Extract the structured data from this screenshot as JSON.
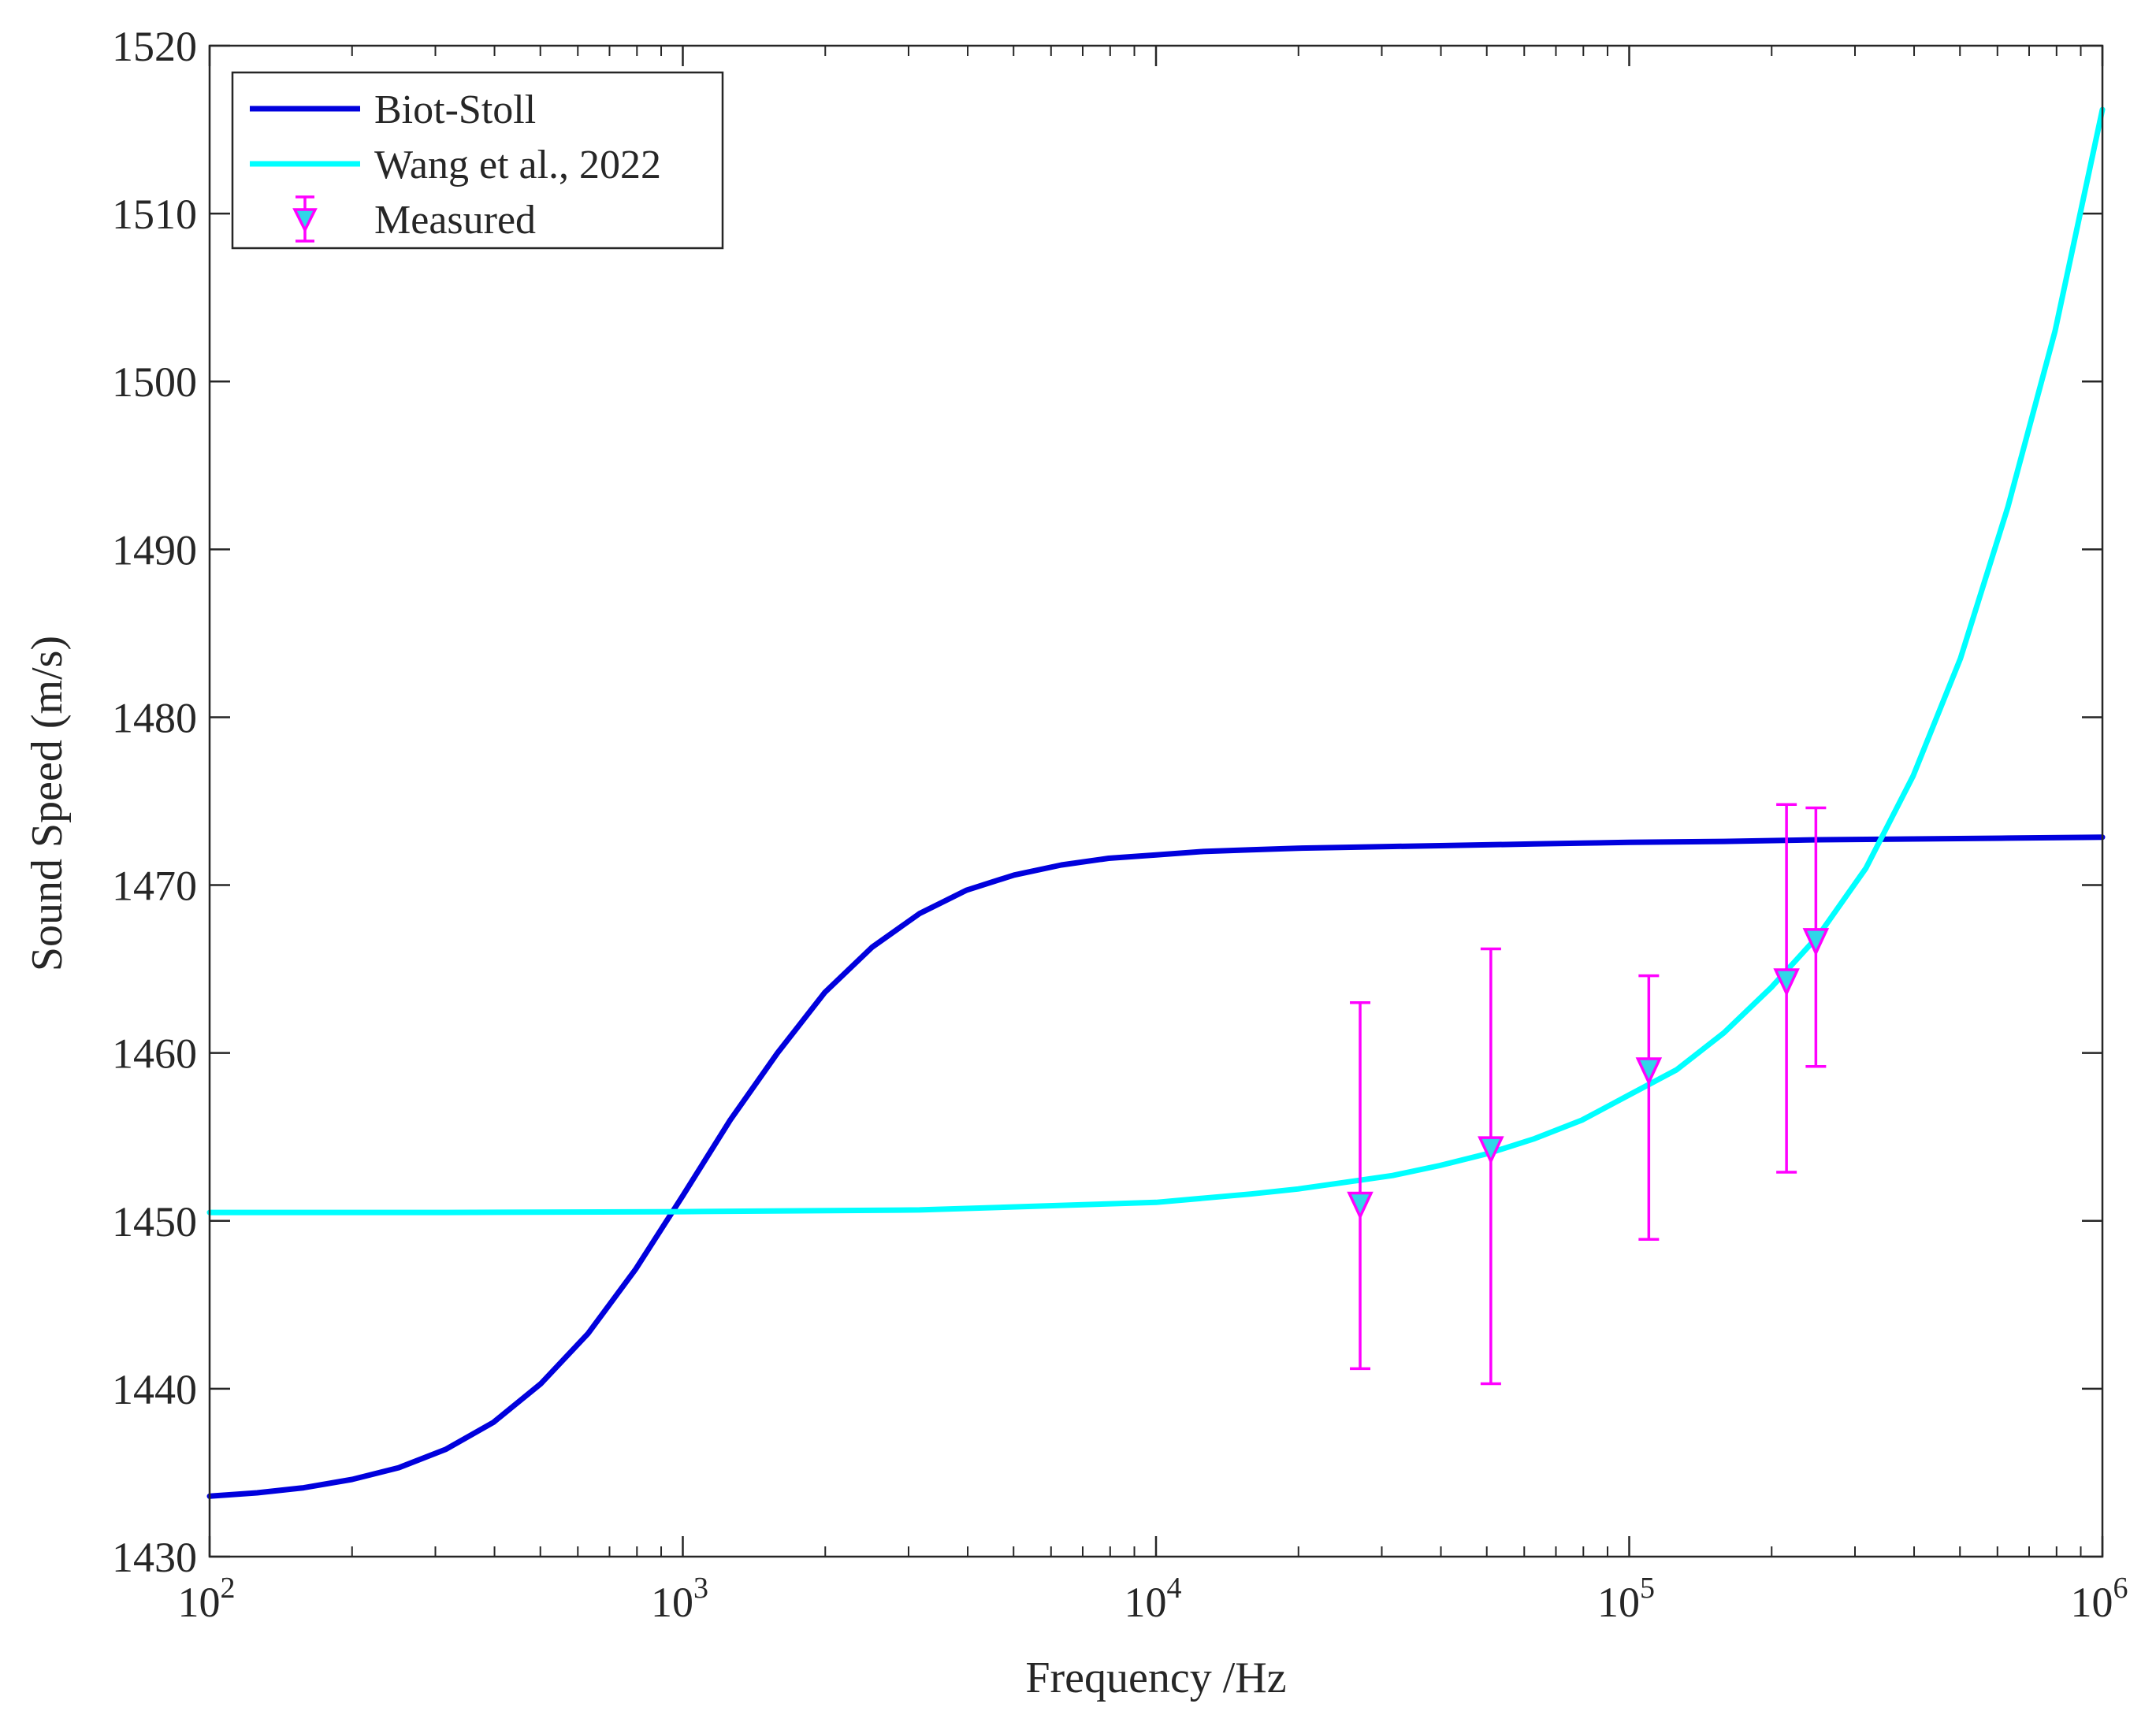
{
  "chart_data": {
    "type": "line",
    "xscale": "log",
    "xlabel": "Frequency /Hz",
    "ylabel": "Sound Speed (m/s)",
    "xlim": [
      100,
      1000000
    ],
    "ylim": [
      1430,
      1520
    ],
    "x_ticks": [
      {
        "value": 100,
        "base": "10",
        "exp": "2"
      },
      {
        "value": 1000,
        "base": "10",
        "exp": "3"
      },
      {
        "value": 10000,
        "base": "10",
        "exp": "4"
      },
      {
        "value": 100000,
        "base": "10",
        "exp": "5"
      },
      {
        "value": 1000000,
        "base": "10",
        "exp": "6"
      }
    ],
    "y_ticks": [
      1430,
      1440,
      1450,
      1460,
      1470,
      1480,
      1490,
      1500,
      1510,
      1520
    ],
    "legend_position": "top-left",
    "series": [
      {
        "name": "Biot-Stoll",
        "kind": "line",
        "color": "#0000DD",
        "x": [
          100,
          126,
          158,
          200,
          251,
          316,
          398,
          501,
          631,
          794,
          1000,
          1259,
          1585,
          1995,
          2512,
          3162,
          3981,
          5012,
          6310,
          7943,
          10000,
          12589,
          15849,
          19953,
          25119,
          31623,
          39811,
          50119,
          63096,
          79433,
          100000,
          158489,
          251189,
          398107,
          630957,
          1000000
        ],
        "y": [
          1433.6,
          1433.8,
          1434.1,
          1434.6,
          1435.3,
          1436.4,
          1438.0,
          1440.3,
          1443.3,
          1447.1,
          1451.5,
          1456.0,
          1460.0,
          1463.6,
          1466.3,
          1468.3,
          1469.7,
          1470.6,
          1471.2,
          1471.6,
          1471.8,
          1472.0,
          1472.1,
          1472.2,
          1472.25,
          1472.3,
          1472.35,
          1472.4,
          1472.45,
          1472.5,
          1472.55,
          1472.6,
          1472.7,
          1472.75,
          1472.8,
          1472.85
        ]
      },
      {
        "name": "Wang et al., 2022",
        "kind": "line",
        "color": "#00FFFF",
        "x": [
          100,
          316,
          1000,
          3162,
          10000,
          15849,
          19953,
          25119,
          31623,
          39811,
          50119,
          63096,
          79433,
          100000,
          125893,
          158489,
          199526,
          251189,
          316228,
          398107,
          501187,
          630957,
          794328,
          1000000
        ],
        "y": [
          1450.5,
          1450.5,
          1450.55,
          1450.65,
          1451.1,
          1451.6,
          1451.9,
          1452.3,
          1452.7,
          1453.3,
          1454.0,
          1454.9,
          1456.0,
          1457.5,
          1459.0,
          1461.2,
          1463.9,
          1467.0,
          1471.0,
          1476.5,
          1483.5,
          1492.5,
          1503.0,
          1516.2
        ]
      },
      {
        "name": "Measured",
        "kind": "errorbar",
        "color": "#FF00FF",
        "marker_fill": "#30D5E8",
        "x": [
          27000,
          51000,
          110000,
          215000,
          248000
        ],
        "y": [
          1451.0,
          1454.3,
          1459.0,
          1464.3,
          1466.7
        ],
        "lower": [
          1441.2,
          1440.3,
          1448.9,
          1452.9,
          1459.2
        ],
        "upper": [
          1463.0,
          1466.2,
          1464.6,
          1474.8,
          1474.6
        ]
      }
    ]
  }
}
